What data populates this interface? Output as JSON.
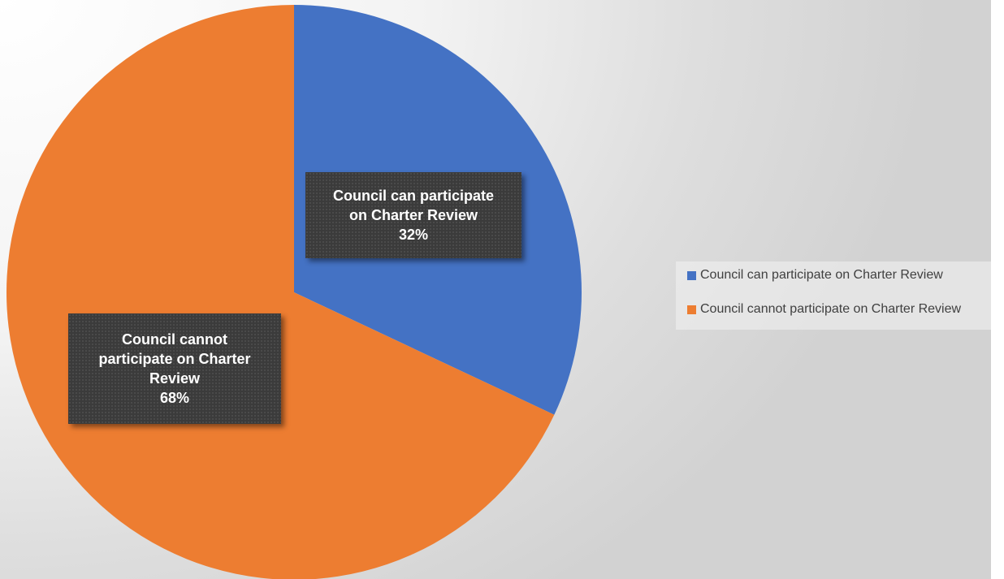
{
  "chart_data": {
    "type": "pie",
    "title": "",
    "categories": [
      "Council can participate on Charter Review",
      "Council cannot participate on Charter Review"
    ],
    "values": [
      32,
      68
    ],
    "colors": [
      "#4472c4",
      "#ed7d31"
    ],
    "data_labels": [
      {
        "lines": [
          "Council can participate",
          "on Charter Review"
        ],
        "percent": "32%"
      },
      {
        "lines": [
          "Council cannot",
          "participate on Charter",
          "Review"
        ],
        "percent": "68%"
      }
    ],
    "legend": {
      "position": "right",
      "entries": [
        "Council can participate on Charter Review",
        "Council cannot participate on Charter Review"
      ]
    },
    "legend_labels": [
      "Council can participate on Charter Review",
      "Council cannot participate on Charter Review"
    ]
  }
}
